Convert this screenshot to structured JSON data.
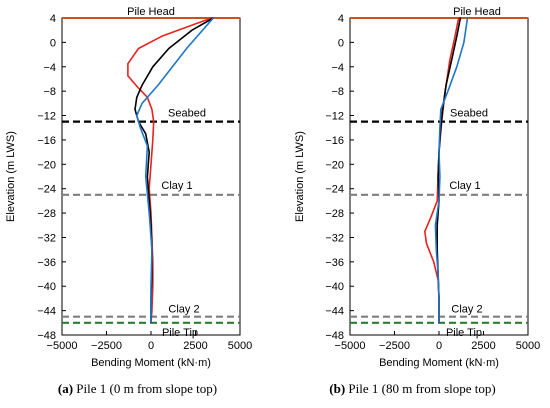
{
  "chart_data": [
    {
      "type": "line",
      "caption_tag": "(a)",
      "caption_text": " Pile 1 (0 m from slope top)",
      "xlabel": "Bending Moment (kN·m)",
      "ylabel": "Elevation (m LWS)",
      "xlim": [
        -5000,
        5000
      ],
      "ylim": [
        -48,
        4
      ],
      "xticks": [
        -5000,
        -2500,
        0,
        2500,
        5000
      ],
      "xtick_labels": [
        "−5000",
        "−2500",
        "0",
        "2500",
        "5000"
      ],
      "yticks": [
        4,
        0,
        -4,
        -8,
        -12,
        -16,
        -20,
        -24,
        -28,
        -32,
        -36,
        -40,
        -44,
        -48
      ],
      "ytick_labels": [
        "4",
        "0",
        "−4",
        "−8",
        "−12",
        "−16",
        "−20",
        "−24",
        "−28",
        "−32",
        "−36",
        "−40",
        "−44",
        "−48"
      ],
      "grid": false,
      "levels": [
        {
          "label": "Pile Head",
          "y": 4,
          "color": "#c0581a",
          "style": "solid"
        },
        {
          "label": "Seabed",
          "y": -13,
          "color": "#000000",
          "style": "dashed"
        },
        {
          "label": "Clay 1",
          "y": -25,
          "color": "#7f7f7f",
          "style": "dashed"
        },
        {
          "label": "Clay 2",
          "y": -45,
          "color": "#7f7f7f",
          "style": "dashed"
        },
        {
          "label": "Pile Tip",
          "y": -46,
          "color": "#2e7d32",
          "style": "dashed"
        }
      ],
      "series": [
        {
          "color": "#e8231f",
          "points": [
            [
              3400,
              4
            ],
            [
              2000,
              2.5
            ],
            [
              600,
              1
            ],
            [
              -700,
              -1
            ],
            [
              -1300,
              -3.5
            ],
            [
              -1300,
              -5.5
            ],
            [
              -700,
              -7.5
            ],
            [
              -200,
              -9
            ],
            [
              50,
              -11
            ],
            [
              150,
              -13
            ],
            [
              100,
              -16
            ],
            [
              0,
              -20
            ],
            [
              -100,
              -24
            ],
            [
              0,
              -28
            ],
            [
              50,
              -32
            ],
            [
              100,
              -36
            ],
            [
              100,
              -40
            ],
            [
              50,
              -44
            ],
            [
              0,
              -46
            ]
          ]
        },
        {
          "color": "#000000",
          "points": [
            [
              3500,
              4
            ],
            [
              2300,
              2
            ],
            [
              1000,
              -1
            ],
            [
              100,
              -4
            ],
            [
              -500,
              -7
            ],
            [
              -800,
              -9
            ],
            [
              -900,
              -11
            ],
            [
              -700,
              -13
            ],
            [
              -300,
              -15
            ],
            [
              -100,
              -18
            ],
            [
              -200,
              -22
            ],
            [
              -100,
              -26
            ],
            [
              0,
              -30
            ],
            [
              50,
              -34
            ],
            [
              50,
              -38
            ],
            [
              0,
              -42
            ],
            [
              0,
              -46
            ]
          ]
        },
        {
          "color": "#1f77c9",
          "points": [
            [
              3500,
              4
            ],
            [
              2900,
              2
            ],
            [
              2000,
              -1
            ],
            [
              1200,
              -4
            ],
            [
              400,
              -7
            ],
            [
              -500,
              -10
            ],
            [
              -800,
              -12
            ],
            [
              -600,
              -14
            ],
            [
              -200,
              -17
            ],
            [
              -300,
              -22
            ],
            [
              -100,
              -28
            ],
            [
              50,
              -34
            ],
            [
              0,
              -40
            ],
            [
              0,
              -46
            ]
          ]
        }
      ]
    },
    {
      "type": "line",
      "caption_tag": "(b)",
      "caption_text": " Pile 1 (80 m from slope top)",
      "xlabel": "Bending Moment (kN·m)",
      "ylabel": "Elevation (m LWS)",
      "xlim": [
        -5000,
        5000
      ],
      "ylim": [
        -48,
        4
      ],
      "xticks": [
        -5000,
        -2500,
        0,
        2500,
        5000
      ],
      "xtick_labels": [
        "−5000",
        "−2500",
        "0",
        "2500",
        "5000"
      ],
      "yticks": [
        4,
        0,
        -4,
        -8,
        -12,
        -16,
        -20,
        -24,
        -28,
        -32,
        -36,
        -40,
        -44,
        -48
      ],
      "ytick_labels": [
        "4",
        "0",
        "−4",
        "−8",
        "−12",
        "−16",
        "−20",
        "−24",
        "−28",
        "−32",
        "−36",
        "−40",
        "−44",
        "−48"
      ],
      "grid": false,
      "levels": [
        {
          "label": "Pile Head",
          "y": 4,
          "color": "#c0581a",
          "style": "solid"
        },
        {
          "label": "Seabed",
          "y": -13,
          "color": "#000000",
          "style": "dashed"
        },
        {
          "label": "Clay 1",
          "y": -25,
          "color": "#7f7f7f",
          "style": "dashed"
        },
        {
          "label": "Clay 2",
          "y": -45,
          "color": "#7f7f7f",
          "style": "dashed"
        },
        {
          "label": "Pile Tip",
          "y": -46,
          "color": "#2e7d32",
          "style": "dashed"
        }
      ],
      "series": [
        {
          "color": "#e8231f",
          "points": [
            [
              1100,
              4
            ],
            [
              900,
              1
            ],
            [
              600,
              -3
            ],
            [
              350,
              -8
            ],
            [
              150,
              -13
            ],
            [
              0,
              -18
            ],
            [
              -50,
              -22
            ],
            [
              -100,
              -26
            ],
            [
              -500,
              -29
            ],
            [
              -800,
              -31
            ],
            [
              -700,
              -33
            ],
            [
              -300,
              -36
            ],
            [
              -50,
              -39
            ],
            [
              0,
              -42
            ],
            [
              0,
              -46
            ]
          ]
        },
        {
          "color": "#000000",
          "points": [
            [
              1200,
              4
            ],
            [
              1000,
              1
            ],
            [
              700,
              -3
            ],
            [
              400,
              -7
            ],
            [
              200,
              -11
            ],
            [
              100,
              -14
            ],
            [
              0,
              -18
            ],
            [
              -50,
              -22
            ],
            [
              0,
              -26
            ],
            [
              -100,
              -30
            ],
            [
              -100,
              -34
            ],
            [
              -50,
              -38
            ],
            [
              0,
              -42
            ],
            [
              0,
              -46
            ]
          ]
        },
        {
          "color": "#1f77c9",
          "points": [
            [
              1600,
              4
            ],
            [
              1400,
              0
            ],
            [
              1000,
              -4
            ],
            [
              500,
              -8
            ],
            [
              100,
              -11
            ],
            [
              50,
              -14
            ],
            [
              0,
              -18
            ],
            [
              50,
              -22
            ],
            [
              0,
              -26
            ],
            [
              -200,
              -30
            ],
            [
              -150,
              -34
            ],
            [
              -50,
              -38
            ],
            [
              0,
              -42
            ],
            [
              0,
              -46
            ]
          ]
        }
      ]
    }
  ]
}
